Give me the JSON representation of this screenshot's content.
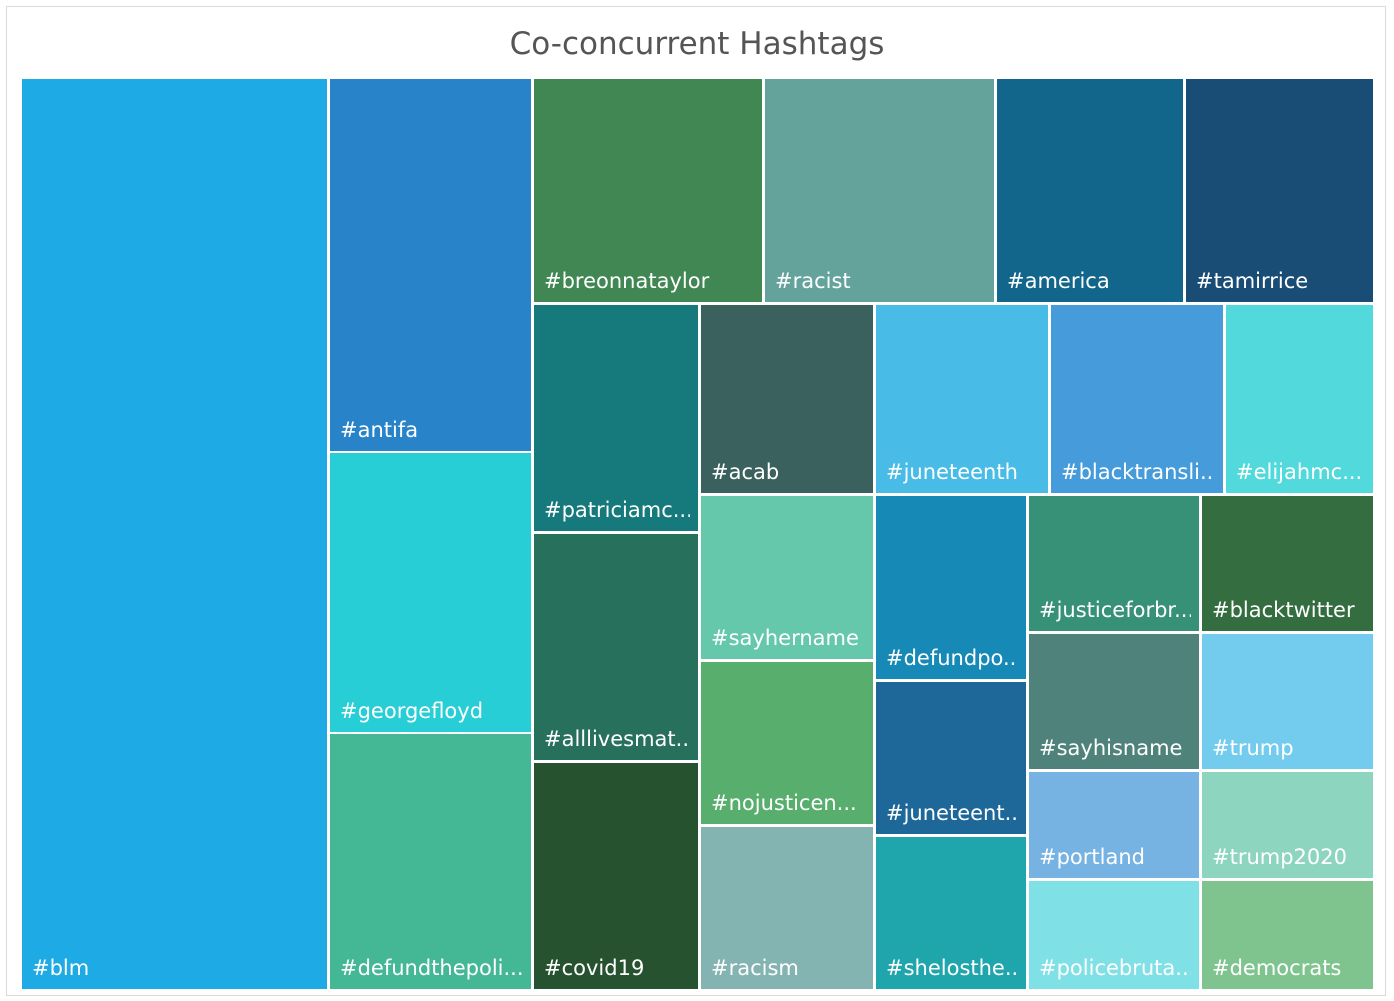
{
  "chart_data": {
    "type": "treemap",
    "title": "Co-concurrent Hashtags",
    "items": [
      {
        "label": "#blm",
        "color": "#1eaae4"
      },
      {
        "label": "#antifa",
        "color": "#2883c8"
      },
      {
        "label": "#georgefloyd",
        "color": "#28ced6"
      },
      {
        "label": "#defundthepoli...",
        "color": "#44b895"
      },
      {
        "label": "#breonnataylor",
        "color": "#418753"
      },
      {
        "label": "#racist",
        "color": "#63a39c"
      },
      {
        "label": "#america",
        "color": "#13668b"
      },
      {
        "label": "#tamirrice",
        "color": "#1a4d76"
      },
      {
        "label": "#patriciamc...",
        "color": "#16797b"
      },
      {
        "label": "#alllivesmat...",
        "color": "#26705c"
      },
      {
        "label": "#covid19",
        "color": "#265230"
      },
      {
        "label": "#acab",
        "color": "#3a615e"
      },
      {
        "label": "#sayhername",
        "color": "#66c8aa"
      },
      {
        "label": "#nojusticen...",
        "color": "#57ae6d"
      },
      {
        "label": "#racism",
        "color": "#83b4b1"
      },
      {
        "label": "#juneteenth",
        "color": "#48bbe7"
      },
      {
        "label": "#defundpo...",
        "color": "#1789b6"
      },
      {
        "label": "#juneteent...",
        "color": "#1e6899"
      },
      {
        "label": "#shelosthe...",
        "color": "#1fa6ac"
      },
      {
        "label": "#blacktransli...",
        "color": "#469bdb"
      },
      {
        "label": "#elijahmc...",
        "color": "#52d9dc"
      },
      {
        "label": "#justiceforbr...",
        "color": "#379177"
      },
      {
        "label": "#blacktwitter",
        "color": "#336d40"
      },
      {
        "label": "#sayhisname",
        "color": "#4e827b"
      },
      {
        "label": "#trump",
        "color": "#73ccee"
      },
      {
        "label": "#portland",
        "color": "#76b2e2"
      },
      {
        "label": "#trump2020",
        "color": "#8ed5bf"
      },
      {
        "label": "#policebruta...",
        "color": "#7fe1e5"
      },
      {
        "label": "#democrats",
        "color": "#7fc48f"
      }
    ]
  }
}
